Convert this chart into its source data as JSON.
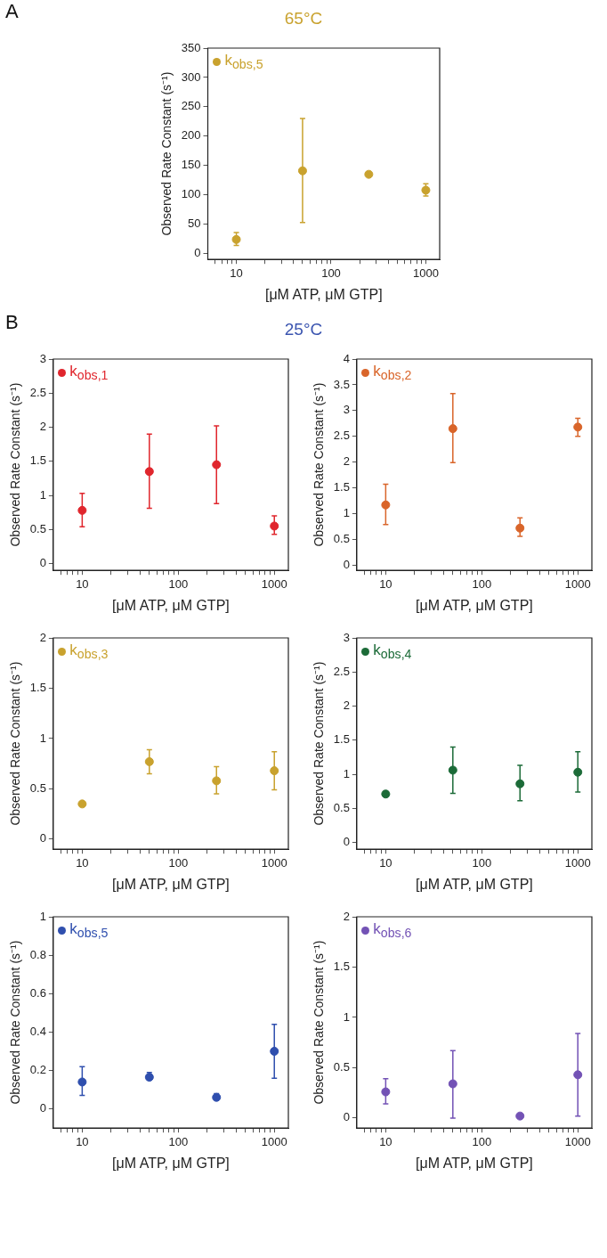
{
  "chart_data": [
    {
      "type": "scatter",
      "title": "65°C",
      "xlabel": "[μM ATP, μM GTP]",
      "ylabel": "Observed Rate Constant (s⁻¹)",
      "annotations": [
        "A"
      ],
      "log": "x",
      "grid": false,
      "legend": "top left",
      "marker": "circle",
      "xlim": [
        5,
        1400
      ],
      "xticks": [
        {
          "value": 6,
          "label": null
        },
        {
          "value": 7,
          "label": null
        },
        {
          "value": 8,
          "label": null
        },
        {
          "value": 9,
          "label": null
        },
        10,
        {
          "value": 20,
          "label": null
        },
        {
          "value": 30,
          "label": null
        },
        {
          "value": 40,
          "label": null
        },
        {
          "value": 50,
          "label": null
        },
        {
          "value": 60,
          "label": null
        },
        {
          "value": 70,
          "label": null
        },
        {
          "value": 80,
          "label": null
        },
        {
          "value": 90,
          "label": null
        },
        100,
        {
          "value": 200,
          "label": null
        },
        {
          "value": 300,
          "label": null
        },
        {
          "value": 400,
          "label": null
        },
        {
          "value": 500,
          "label": null
        },
        {
          "value": 600,
          "label": null
        },
        {
          "value": 700,
          "label": null
        },
        {
          "value": 800,
          "label": null
        },
        {
          "value": 900,
          "label": null
        },
        1000
      ],
      "ylim": [
        -10,
        350
      ],
      "yticks": [
        0,
        50,
        100,
        150,
        200,
        250,
        300,
        350
      ],
      "series": [
        {
          "name": "k$_{obs,5}$",
          "color": "#c9a22e",
          "x": [
            10,
            50,
            250,
            1000
          ],
          "values": [
            24,
            141,
            135,
            108
          ],
          "errors": [
            [
              14,
              36
            ],
            [
              53,
              230
            ],
            null,
            [
              98,
              119
            ]
          ]
        }
      ]
    },
    {
      "type": "scatter",
      "title": "25°C",
      "xlabel": "[μM ATP, μM GTP]",
      "ylabel": "Observed Rate Constant (s⁻¹)",
      "annotations": [
        "B"
      ],
      "log": "x",
      "grid": false,
      "legend": "top left",
      "marker": "circle",
      "xlim": [
        5,
        1400
      ],
      "xticks": [
        {
          "value": 6,
          "label": null
        },
        {
          "value": 7,
          "label": null
        },
        {
          "value": 8,
          "label": null
        },
        {
          "value": 9,
          "label": null
        },
        10,
        {
          "value": 20,
          "label": null
        },
        {
          "value": 30,
          "label": null
        },
        {
          "value": 40,
          "label": null
        },
        {
          "value": 50,
          "label": null
        },
        {
          "value": 60,
          "label": null
        },
        {
          "value": 70,
          "label": null
        },
        {
          "value": 80,
          "label": null
        },
        {
          "value": 90,
          "label": null
        },
        100,
        {
          "value": 200,
          "label": null
        },
        {
          "value": 300,
          "label": null
        },
        {
          "value": 400,
          "label": null
        },
        {
          "value": 500,
          "label": null
        },
        {
          "value": 600,
          "label": null
        },
        {
          "value": 700,
          "label": null
        },
        {
          "value": 800,
          "label": null
        },
        {
          "value": 900,
          "label": null
        },
        1000
      ],
      "ylim": [
        -0.1,
        3
      ],
      "yticks": [
        0,
        0.5,
        1,
        1.5,
        2,
        2.5,
        3
      ],
      "series": [
        {
          "name": "k$_{obs,1}$",
          "color": "#e0262d",
          "x": [
            10,
            50,
            250,
            1000
          ],
          "values": [
            0.78,
            1.35,
            1.45,
            0.55
          ],
          "errors": [
            [
              0.54,
              1.03
            ],
            [
              0.81,
              1.9
            ],
            [
              0.88,
              2.02
            ],
            [
              0.43,
              0.7
            ]
          ]
        }
      ]
    },
    {
      "type": "scatter",
      "xlabel": "[μM ATP, μM GTP]",
      "ylabel": "Observed Rate Constant (s⁻¹)",
      "log": "x",
      "grid": false,
      "legend": "top left",
      "marker": "circle",
      "xlim": [
        5,
        1400
      ],
      "xticks": [
        {
          "value": 6,
          "label": null
        },
        {
          "value": 7,
          "label": null
        },
        {
          "value": 8,
          "label": null
        },
        {
          "value": 9,
          "label": null
        },
        10,
        {
          "value": 20,
          "label": null
        },
        {
          "value": 30,
          "label": null
        },
        {
          "value": 40,
          "label": null
        },
        {
          "value": 50,
          "label": null
        },
        {
          "value": 60,
          "label": null
        },
        {
          "value": 70,
          "label": null
        },
        {
          "value": 80,
          "label": null
        },
        {
          "value": 90,
          "label": null
        },
        100,
        {
          "value": 200,
          "label": null
        },
        {
          "value": 300,
          "label": null
        },
        {
          "value": 400,
          "label": null
        },
        {
          "value": 500,
          "label": null
        },
        {
          "value": 600,
          "label": null
        },
        {
          "value": 700,
          "label": null
        },
        {
          "value": 800,
          "label": null
        },
        {
          "value": 900,
          "label": null
        },
        1000
      ],
      "ylim": [
        -0.1,
        4
      ],
      "yticks": [
        0,
        0.5,
        1,
        1.5,
        2,
        2.5,
        3,
        3.5,
        4
      ],
      "series": [
        {
          "name": "k$_{obs,2}$",
          "color": "#d9652a",
          "x": [
            10,
            50,
            250,
            1000
          ],
          "values": [
            1.17,
            2.65,
            0.72,
            2.68
          ],
          "errors": [
            [
              0.79,
              1.57
            ],
            [
              1.99,
              3.33
            ],
            [
              0.56,
              0.92
            ],
            [
              2.5,
              2.85
            ]
          ]
        }
      ]
    },
    {
      "type": "scatter",
      "xlabel": "[μM ATP, μM GTP]",
      "ylabel": "Observed Rate Constant (s⁻¹)",
      "log": "x",
      "grid": false,
      "legend": "top left",
      "marker": "circle",
      "xlim": [
        5,
        1400
      ],
      "xticks": [
        {
          "value": 6,
          "label": null
        },
        {
          "value": 7,
          "label": null
        },
        {
          "value": 8,
          "label": null
        },
        {
          "value": 9,
          "label": null
        },
        10,
        {
          "value": 20,
          "label": null
        },
        {
          "value": 30,
          "label": null
        },
        {
          "value": 40,
          "label": null
        },
        {
          "value": 50,
          "label": null
        },
        {
          "value": 60,
          "label": null
        },
        {
          "value": 70,
          "label": null
        },
        {
          "value": 80,
          "label": null
        },
        {
          "value": 90,
          "label": null
        },
        100,
        {
          "value": 200,
          "label": null
        },
        {
          "value": 300,
          "label": null
        },
        {
          "value": 400,
          "label": null
        },
        {
          "value": 500,
          "label": null
        },
        {
          "value": 600,
          "label": null
        },
        {
          "value": 700,
          "label": null
        },
        {
          "value": 800,
          "label": null
        },
        {
          "value": 900,
          "label": null
        },
        1000
      ],
      "ylim": [
        -0.1,
        2
      ],
      "yticks": [
        0,
        0.5,
        1,
        1.5,
        2
      ],
      "series": [
        {
          "name": "k$_{obs,3}$",
          "color": "#c9a22e",
          "x": [
            10,
            50,
            250,
            1000
          ],
          "values": [
            0.35,
            0.77,
            0.58,
            0.68
          ],
          "errors": [
            null,
            [
              0.65,
              0.89
            ],
            [
              0.45,
              0.72
            ],
            [
              0.49,
              0.87
            ]
          ]
        }
      ]
    },
    {
      "type": "scatter",
      "xlabel": "[μM ATP, μM GTP]",
      "ylabel": "Observed Rate Constant (s⁻¹)",
      "log": "x",
      "grid": false,
      "legend": "top left",
      "marker": "circle",
      "xlim": [
        5,
        1400
      ],
      "xticks": [
        {
          "value": 6,
          "label": null
        },
        {
          "value": 7,
          "label": null
        },
        {
          "value": 8,
          "label": null
        },
        {
          "value": 9,
          "label": null
        },
        10,
        {
          "value": 20,
          "label": null
        },
        {
          "value": 30,
          "label": null
        },
        {
          "value": 40,
          "label": null
        },
        {
          "value": 50,
          "label": null
        },
        {
          "value": 60,
          "label": null
        },
        {
          "value": 70,
          "label": null
        },
        {
          "value": 80,
          "label": null
        },
        {
          "value": 90,
          "label": null
        },
        100,
        {
          "value": 200,
          "label": null
        },
        {
          "value": 300,
          "label": null
        },
        {
          "value": 400,
          "label": null
        },
        {
          "value": 500,
          "label": null
        },
        {
          "value": 600,
          "label": null
        },
        {
          "value": 700,
          "label": null
        },
        {
          "value": 800,
          "label": null
        },
        {
          "value": 900,
          "label": null
        },
        1000
      ],
      "ylim": [
        -0.1,
        3
      ],
      "yticks": [
        0,
        0.5,
        1,
        1.5,
        2,
        2.5,
        3
      ],
      "series": [
        {
          "name": "k$_{obs,4}$",
          "color": "#1c6b38",
          "x": [
            10,
            50,
            250,
            1000
          ],
          "values": [
            0.71,
            1.06,
            0.86,
            1.03
          ],
          "errors": [
            [
              0.68,
              0.75
            ],
            [
              0.72,
              1.4
            ],
            [
              0.61,
              1.13
            ],
            [
              0.74,
              1.33
            ]
          ]
        }
      ]
    },
    {
      "type": "scatter",
      "xlabel": "[μM ATP, μM GTP]",
      "ylabel": "Observed Rate Constant (s⁻¹)",
      "log": "x",
      "grid": false,
      "legend": "top left",
      "marker": "circle",
      "xlim": [
        5,
        1400
      ],
      "xticks": [
        {
          "value": 6,
          "label": null
        },
        {
          "value": 7,
          "label": null
        },
        {
          "value": 8,
          "label": null
        },
        {
          "value": 9,
          "label": null
        },
        10,
        {
          "value": 20,
          "label": null
        },
        {
          "value": 30,
          "label": null
        },
        {
          "value": 40,
          "label": null
        },
        {
          "value": 50,
          "label": null
        },
        {
          "value": 60,
          "label": null
        },
        {
          "value": 70,
          "label": null
        },
        {
          "value": 80,
          "label": null
        },
        {
          "value": 90,
          "label": null
        },
        100,
        {
          "value": 200,
          "label": null
        },
        {
          "value": 300,
          "label": null
        },
        {
          "value": 400,
          "label": null
        },
        {
          "value": 500,
          "label": null
        },
        {
          "value": 600,
          "label": null
        },
        {
          "value": 700,
          "label": null
        },
        {
          "value": 800,
          "label": null
        },
        {
          "value": 900,
          "label": null
        },
        1000
      ],
      "ylim": [
        -0.1,
        1
      ],
      "yticks": [
        0,
        0.2,
        0.4,
        0.6,
        0.8,
        1
      ],
      "series": [
        {
          "name": "k$_{obs,5}$",
          "color": "#2f4fae",
          "x": [
            10,
            50,
            250,
            1000
          ],
          "values": [
            0.14,
            0.165,
            0.06,
            0.3
          ],
          "errors": [
            [
              0.07,
              0.22
            ],
            [
              0.15,
              0.19
            ],
            [
              0.05,
              0.08
            ],
            [
              0.16,
              0.44
            ]
          ]
        }
      ]
    },
    {
      "type": "scatter",
      "xlabel": "[μM ATP, μM GTP]",
      "ylabel": "Observed Rate Constant (s⁻¹)",
      "log": "x",
      "grid": false,
      "legend": "top left",
      "marker": "circle",
      "xlim": [
        5,
        1400
      ],
      "xticks": [
        {
          "value": 6,
          "label": null
        },
        {
          "value": 7,
          "label": null
        },
        {
          "value": 8,
          "label": null
        },
        {
          "value": 9,
          "label": null
        },
        10,
        {
          "value": 20,
          "label": null
        },
        {
          "value": 30,
          "label": null
        },
        {
          "value": 40,
          "label": null
        },
        {
          "value": 50,
          "label": null
        },
        {
          "value": 60,
          "label": null
        },
        {
          "value": 70,
          "label": null
        },
        {
          "value": 80,
          "label": null
        },
        {
          "value": 90,
          "label": null
        },
        100,
        {
          "value": 200,
          "label": null
        },
        {
          "value": 300,
          "label": null
        },
        {
          "value": 400,
          "label": null
        },
        {
          "value": 500,
          "label": null
        },
        {
          "value": 600,
          "label": null
        },
        {
          "value": 700,
          "label": null
        },
        {
          "value": 800,
          "label": null
        },
        {
          "value": 900,
          "label": null
        },
        1000
      ],
      "ylim": [
        -0.1,
        2
      ],
      "yticks": [
        0,
        0.5,
        1,
        1.5,
        2
      ],
      "series": [
        {
          "name": "k$_{obs,6}$",
          "color": "#7352b5",
          "x": [
            10,
            50,
            250,
            1000
          ],
          "values": [
            0.26,
            0.34,
            0.02,
            0.43
          ],
          "errors": [
            [
              0.14,
              0.39
            ],
            [
              0,
              0.67
            ],
            null,
            [
              0.02,
              0.84
            ]
          ]
        }
      ]
    }
  ]
}
